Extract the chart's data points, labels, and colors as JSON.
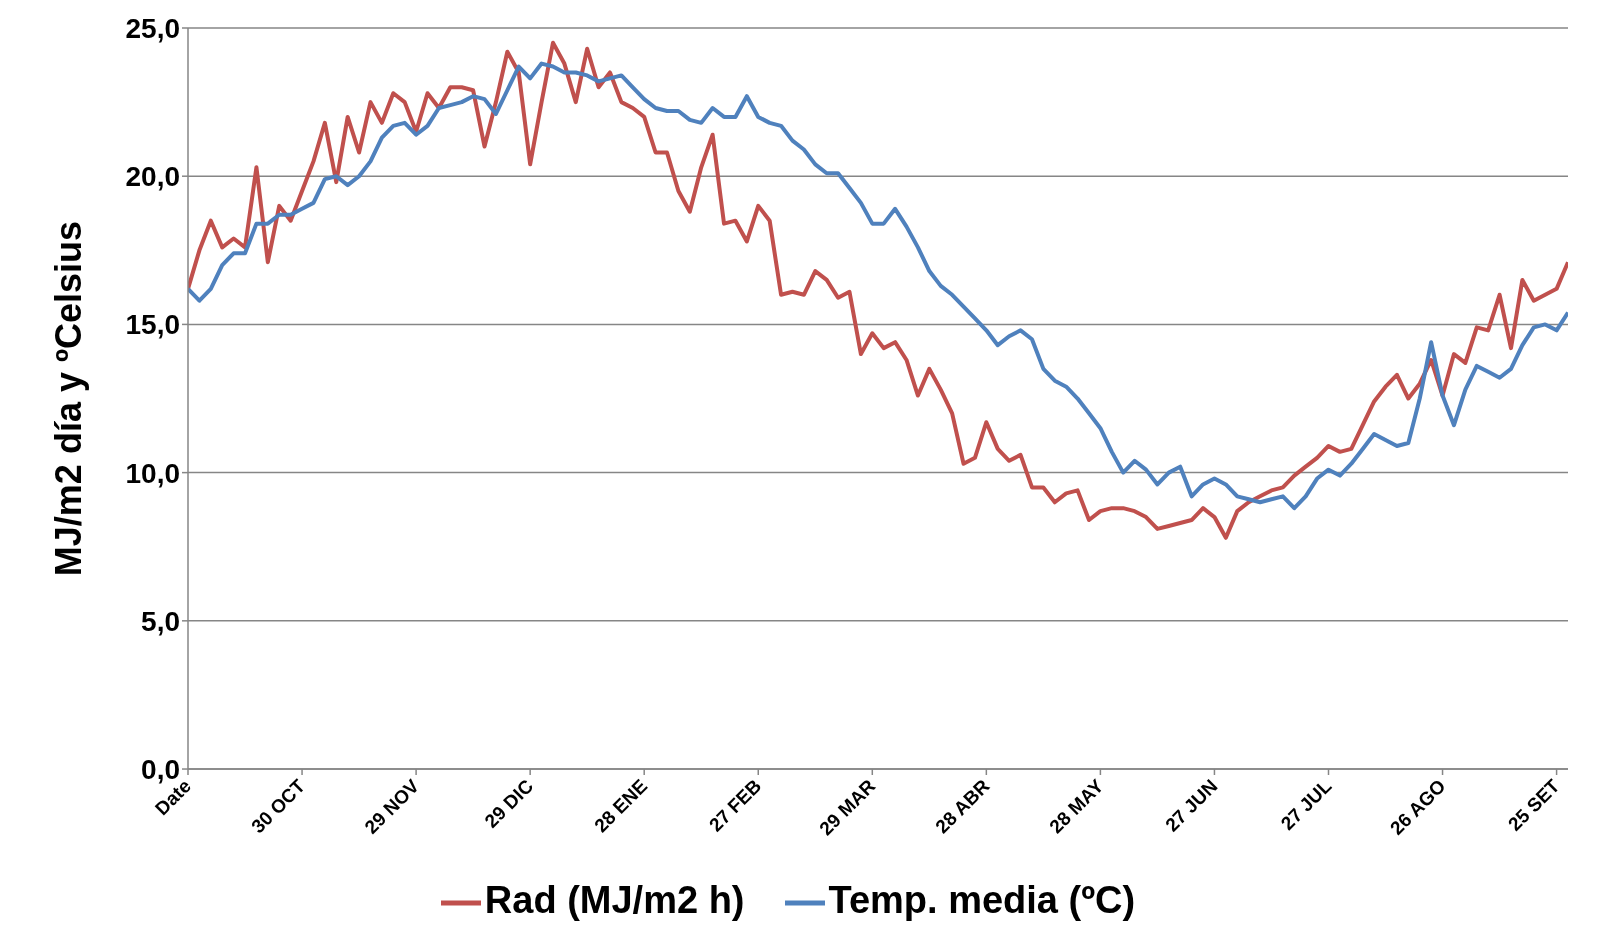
{
  "chart_data": {
    "type": "line",
    "ylabel": "MJ/m2 día  y  ºCelsius",
    "categories": [
      "Date",
      null,
      null,
      null,
      null,
      null,
      null,
      null,
      null,
      null,
      "30 OCT",
      null,
      null,
      null,
      null,
      null,
      null,
      null,
      null,
      null,
      "29 NOV",
      null,
      null,
      null,
      null,
      null,
      null,
      null,
      null,
      null,
      "29 DIC",
      null,
      null,
      null,
      null,
      null,
      null,
      null,
      null,
      null,
      "28 ENE",
      null,
      null,
      null,
      null,
      null,
      null,
      null,
      null,
      null,
      "27 FEB",
      null,
      null,
      null,
      null,
      null,
      null,
      null,
      null,
      null,
      "29 MAR",
      null,
      null,
      null,
      null,
      null,
      null,
      null,
      null,
      null,
      "28 ABR",
      null,
      null,
      null,
      null,
      null,
      null,
      null,
      null,
      null,
      "28 MAY",
      null,
      null,
      null,
      null,
      null,
      null,
      null,
      null,
      null,
      "27 JUN",
      null,
      null,
      null,
      null,
      null,
      null,
      null,
      null,
      null,
      "27 JUL",
      null,
      null,
      null,
      null,
      null,
      null,
      null,
      null,
      null,
      "26 AGO",
      null,
      null,
      null,
      null,
      null,
      null,
      null,
      null,
      null,
      "25 SET",
      null
    ],
    "ylim": [
      0,
      25
    ],
    "yticks": [
      {
        "value": 0,
        "label": "0,0"
      },
      {
        "value": 5,
        "label": "5,0"
      },
      {
        "value": 10,
        "label": "10,0"
      },
      {
        "value": 15,
        "label": "15,0"
      },
      {
        "value": 20,
        "label": "20,0"
      },
      {
        "value": 25,
        "label": "25,0"
      }
    ],
    "grid": "y",
    "legend": "bottom",
    "marker": "none",
    "line_style": "solid",
    "series": [
      {
        "name": "Rad (MJ/m2 h)",
        "color": "#c0504d",
        "values": [
          16.2,
          17.5,
          18.5,
          17.6,
          17.9,
          17.6,
          20.3,
          17.1,
          19.0,
          18.5,
          19.5,
          20.5,
          21.8,
          19.8,
          22.0,
          20.8,
          22.5,
          21.8,
          22.8,
          22.5,
          21.5,
          22.8,
          22.3,
          23.0,
          23.0,
          22.9,
          21.0,
          22.5,
          24.2,
          23.5,
          20.4,
          22.5,
          24.5,
          23.8,
          22.5,
          24.3,
          23.0,
          23.5,
          22.5,
          22.3,
          22.0,
          20.8,
          20.8,
          19.5,
          18.8,
          20.3,
          21.4,
          18.4,
          18.5,
          17.8,
          19.0,
          18.5,
          16.0,
          16.1,
          16.0,
          16.8,
          16.5,
          15.9,
          16.1,
          14.0,
          14.7,
          14.2,
          14.4,
          13.8,
          12.6,
          13.5,
          12.8,
          12.0,
          10.3,
          10.5,
          11.7,
          10.8,
          10.4,
          10.6,
          9.5,
          9.5,
          9.0,
          9.3,
          9.4,
          8.4,
          8.7,
          8.8,
          8.8,
          8.7,
          8.5,
          8.1,
          8.2,
          8.3,
          8.4,
          8.8,
          8.5,
          7.8,
          8.7,
          9.0,
          9.2,
          9.4,
          9.5,
          9.9,
          10.2,
          10.5,
          10.9,
          10.7,
          10.8,
          11.6,
          12.4,
          12.9,
          13.3,
          12.5,
          13.0,
          13.8,
          12.6,
          14.0,
          13.7,
          14.9,
          14.8,
          16.0,
          14.2,
          16.5,
          15.8,
          16.0,
          16.2,
          17.1
        ]
      },
      {
        "name": "Temp. media (ºC)",
        "color": "#4f81bd",
        "values": [
          16.2,
          15.8,
          16.2,
          17.0,
          17.4,
          17.4,
          18.4,
          18.4,
          18.7,
          18.7,
          18.9,
          19.1,
          19.9,
          20.0,
          19.7,
          20.0,
          20.5,
          21.3,
          21.7,
          21.8,
          21.4,
          21.7,
          22.3,
          22.4,
          22.5,
          22.7,
          22.6,
          22.1,
          22.9,
          23.7,
          23.3,
          23.8,
          23.7,
          23.5,
          23.5,
          23.4,
          23.2,
          23.3,
          23.4,
          23.0,
          22.6,
          22.3,
          22.2,
          22.2,
          21.9,
          21.8,
          22.3,
          22.0,
          22.0,
          22.7,
          22.0,
          21.8,
          21.7,
          21.2,
          20.9,
          20.4,
          20.1,
          20.1,
          19.6,
          19.1,
          18.4,
          18.4,
          18.9,
          18.3,
          17.6,
          16.8,
          16.3,
          16.0,
          15.6,
          15.2,
          14.8,
          14.3,
          14.6,
          14.8,
          14.5,
          13.5,
          13.1,
          12.9,
          12.5,
          12.0,
          11.5,
          10.7,
          10.0,
          10.4,
          10.1,
          9.6,
          10.0,
          10.2,
          9.2,
          9.6,
          9.8,
          9.6,
          9.2,
          9.1,
          9.0,
          9.1,
          9.2,
          8.8,
          9.2,
          9.8,
          10.1,
          9.9,
          10.3,
          10.8,
          11.3,
          11.1,
          10.9,
          11.0,
          12.5,
          14.4,
          12.6,
          11.6,
          12.8,
          13.6,
          13.4,
          13.2,
          13.5,
          14.3,
          14.9,
          15.0,
          14.8,
          15.4
        ]
      }
    ]
  }
}
